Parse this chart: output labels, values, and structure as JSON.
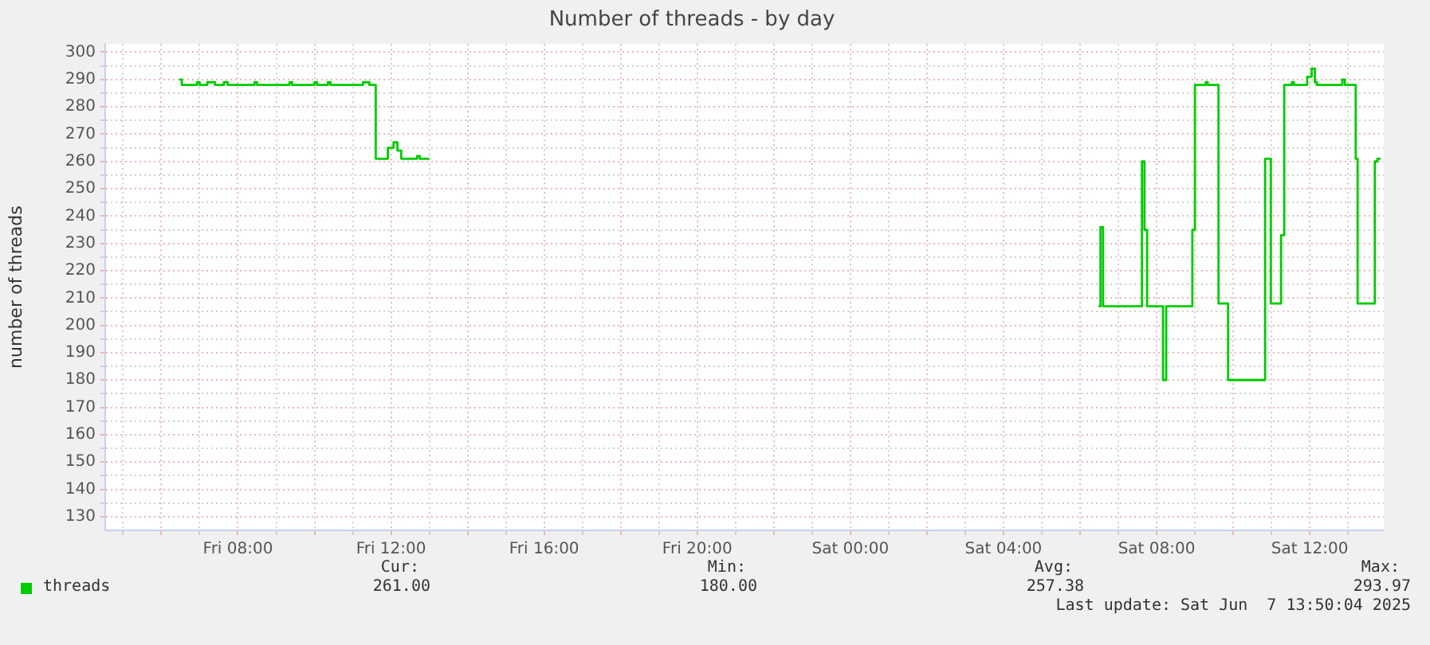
{
  "chart_data": {
    "type": "step",
    "title": "Number of threads - by day",
    "ylabel": "number of threads",
    "xlim": [
      "2025-06-06T04:32",
      "2025-06-07T13:56"
    ],
    "ylim": [
      125,
      303
    ],
    "xticks": [
      {
        "value": "2025-06-06T05:00",
        "label": null
      },
      {
        "value": "2025-06-06T06:00",
        "label": null
      },
      {
        "value": "2025-06-06T07:00",
        "label": null
      },
      {
        "value": "2025-06-06T08:00",
        "label": "Fri 08:00"
      },
      {
        "value": "2025-06-06T09:00",
        "label": null
      },
      {
        "value": "2025-06-06T10:00",
        "label": null
      },
      {
        "value": "2025-06-06T11:00",
        "label": null
      },
      {
        "value": "2025-06-06T12:00",
        "label": "Fri 12:00"
      },
      {
        "value": "2025-06-06T13:00",
        "label": null
      },
      {
        "value": "2025-06-06T14:00",
        "label": null
      },
      {
        "value": "2025-06-06T15:00",
        "label": null
      },
      {
        "value": "2025-06-06T16:00",
        "label": "Fri 16:00"
      },
      {
        "value": "2025-06-06T17:00",
        "label": null
      },
      {
        "value": "2025-06-06T18:00",
        "label": null
      },
      {
        "value": "2025-06-06T19:00",
        "label": null
      },
      {
        "value": "2025-06-06T20:00",
        "label": "Fri 20:00"
      },
      {
        "value": "2025-06-06T21:00",
        "label": null
      },
      {
        "value": "2025-06-06T22:00",
        "label": null
      },
      {
        "value": "2025-06-06T23:00",
        "label": null
      },
      {
        "value": "2025-06-07T00:00",
        "label": "Sat 00:00"
      },
      {
        "value": "2025-06-07T01:00",
        "label": null
      },
      {
        "value": "2025-06-07T02:00",
        "label": null
      },
      {
        "value": "2025-06-07T03:00",
        "label": null
      },
      {
        "value": "2025-06-07T04:00",
        "label": "Sat 04:00"
      },
      {
        "value": "2025-06-07T05:00",
        "label": null
      },
      {
        "value": "2025-06-07T06:00",
        "label": null
      },
      {
        "value": "2025-06-07T07:00",
        "label": null
      },
      {
        "value": "2025-06-07T08:00",
        "label": "Sat 08:00"
      },
      {
        "value": "2025-06-07T09:00",
        "label": null
      },
      {
        "value": "2025-06-07T10:00",
        "label": null
      },
      {
        "value": "2025-06-07T11:00",
        "label": null
      },
      {
        "value": "2025-06-07T12:00",
        "label": "Sat 12:00"
      },
      {
        "value": "2025-06-07T13:00",
        "label": null
      }
    ],
    "yticks": [
      130,
      {
        "value": 135,
        "label": null
      },
      140,
      {
        "value": 145,
        "label": null
      },
      150,
      {
        "value": 155,
        "label": null
      },
      160,
      {
        "value": 165,
        "label": null
      },
      170,
      {
        "value": 175,
        "label": null
      },
      180,
      {
        "value": 185,
        "label": null
      },
      190,
      {
        "value": 195,
        "label": null
      },
      200,
      {
        "value": 205,
        "label": null
      },
      210,
      {
        "value": 215,
        "label": null
      },
      220,
      {
        "value": 225,
        "label": null
      },
      230,
      {
        "value": 235,
        "label": null
      },
      240,
      {
        "value": 245,
        "label": null
      },
      250,
      {
        "value": 255,
        "label": null
      },
      260,
      {
        "value": 265,
        "label": null
      },
      270,
      {
        "value": 275,
        "label": null
      },
      280,
      {
        "value": 285,
        "label": null
      },
      290,
      {
        "value": 295,
        "label": null
      },
      300
    ],
    "grid": true,
    "legend": "bottom left",
    "marker": "none",
    "series": [
      {
        "name": "threads",
        "color": "#00cc00",
        "x": [
          "2025-06-06T06:28",
          "2025-06-06T06:32",
          "2025-06-06T06:56",
          "2025-06-06T07:00",
          "2025-06-06T07:12",
          "2025-06-06T07:24",
          "2025-06-06T07:38",
          "2025-06-06T07:44",
          "2025-06-06T08:26",
          "2025-06-06T08:30",
          "2025-06-06T09:21",
          "2025-06-06T09:25",
          "2025-06-06T10:00",
          "2025-06-06T10:04",
          "2025-06-06T10:21",
          "2025-06-06T10:25",
          "2025-06-06T11:16",
          "2025-06-06T11:26",
          "2025-06-06T11:36",
          "2025-06-06T11:55",
          "2025-06-06T12:04",
          "2025-06-06T12:10",
          "2025-06-06T12:16",
          "2025-06-06T12:41",
          "2025-06-06T12:45",
          "2025-06-06T13:00",
          "2025-06-06T13:05",
          "2025-06-07T06:29",
          "2025-06-07T06:32",
          "2025-06-07T06:36",
          "2025-06-07T07:37",
          "2025-06-07T07:41",
          "2025-06-07T07:45",
          "2025-06-07T08:10",
          "2025-06-07T08:15",
          "2025-06-07T08:56",
          "2025-06-07T09:00",
          "2025-06-07T09:17",
          "2025-06-07T09:20",
          "2025-06-07T09:37",
          "2025-06-07T09:52",
          "2025-06-07T10:50",
          "2025-06-07T10:59",
          "2025-06-07T11:15",
          "2025-06-07T11:20",
          "2025-06-07T11:32",
          "2025-06-07T11:35",
          "2025-06-07T11:56",
          "2025-06-07T12:03",
          "2025-06-07T12:08",
          "2025-06-07T12:11",
          "2025-06-07T12:51",
          "2025-06-07T12:55",
          "2025-06-07T13:12",
          "2025-06-07T13:15",
          "2025-06-07T13:42",
          "2025-06-07T13:46",
          "2025-06-07T13:51"
        ],
        "values": [
          290,
          288,
          289,
          288,
          289,
          288,
          289,
          288,
          289,
          288,
          289,
          288,
          289,
          288,
          289,
          288,
          289,
          288,
          261,
          265,
          267,
          264,
          261,
          262,
          261,
          261,
          null,
          207,
          236,
          207,
          260,
          235,
          207,
          180,
          207,
          235,
          288,
          289,
          288,
          208,
          180,
          261,
          208,
          233,
          288,
          289,
          288,
          291,
          294,
          289,
          288,
          290,
          288,
          261,
          208,
          260,
          261,
          261
        ]
      }
    ],
    "annotations": [
      "Cur:",
      "261.00",
      "Min:",
      "180.00",
      "Avg:",
      "257.38",
      "Max:",
      "293.97",
      "Last update: Sat Jun  7 13:50:04 2025"
    ]
  }
}
